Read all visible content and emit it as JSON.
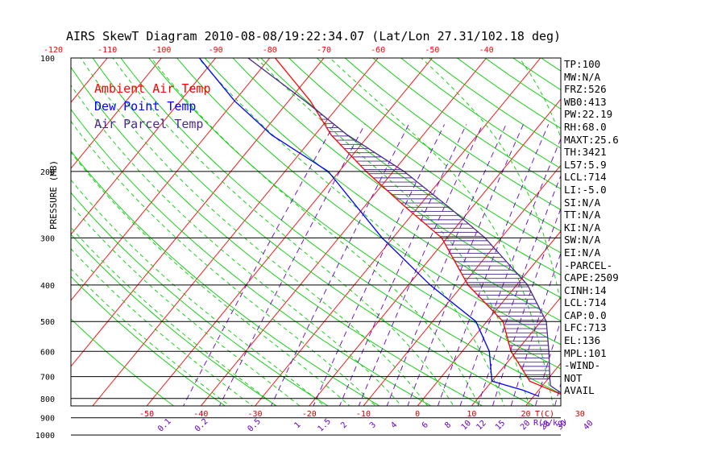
{
  "chart_data": {
    "type": "line",
    "title": "AIRS SkewT Diagram 2010-08-08/19:22:34.07 (Lat/Lon 27.31/102.18 deg)",
    "ylabel": "PRESSURE (MB)",
    "pressure_ticks": [
      100,
      200,
      300,
      400,
      500,
      600,
      700,
      800,
      900,
      1000
    ],
    "pressure_range": [
      100,
      1050
    ],
    "temperature_range_bottom": [
      -52,
      38
    ],
    "top_temp_ticks": [
      -120,
      -110,
      -100,
      -90,
      -80,
      -70,
      -60,
      -50,
      -40
    ],
    "bottom_temp_ticks": [
      -50,
      -40,
      -30,
      -20,
      -10,
      0,
      10,
      20,
      30
    ],
    "bottom_temp_unit": "T(C)",
    "mixing_ratio_ticks": [
      "0.1",
      "0.2",
      "0.5",
      "1",
      "1.5",
      "2",
      "3",
      "4",
      "6",
      "8",
      "10",
      "12",
      "15",
      "20",
      "25",
      "30",
      "40"
    ],
    "mixing_ratio_unit": "R(g/kg)",
    "legend": [
      {
        "label": "Ambient Air Temp",
        "color": "#ff0000"
      },
      {
        "label": "Dew Point Temp",
        "color": "#0000ff"
      },
      {
        "label": "Air Parcel Temp",
        "color": "#4b2a8c"
      }
    ],
    "series": [
      {
        "name": "Ambient Air Temp",
        "color": "#ff0000",
        "points": [
          [
            790,
            26
          ],
          [
            720,
            17
          ],
          [
            600,
            9
          ],
          [
            500,
            3
          ],
          [
            400,
            -9
          ],
          [
            300,
            -21
          ],
          [
            250,
            -32
          ],
          [
            200,
            -45
          ],
          [
            160,
            -57
          ],
          [
            130,
            -66
          ],
          [
            100,
            -79
          ]
        ]
      },
      {
        "name": "Dew Point Temp",
        "color": "#0000ff",
        "points": [
          [
            790,
            21
          ],
          [
            760,
            17
          ],
          [
            720,
            10
          ],
          [
            600,
            5
          ],
          [
            500,
            -2
          ],
          [
            400,
            -16
          ],
          [
            300,
            -32
          ],
          [
            250,
            -41
          ],
          [
            200,
            -52
          ],
          [
            160,
            -68
          ],
          [
            130,
            -80
          ],
          [
            100,
            -93
          ]
        ]
      },
      {
        "name": "Air Parcel Temp",
        "color": "#4b2a8c",
        "points": [
          [
            790,
            26
          ],
          [
            740,
            21.5
          ],
          [
            714,
            20.5
          ],
          [
            600,
            16
          ],
          [
            500,
            11
          ],
          [
            400,
            2
          ],
          [
            300,
            -13
          ],
          [
            250,
            -24
          ],
          [
            200,
            -38
          ],
          [
            160,
            -54
          ],
          [
            130,
            -67
          ],
          [
            100,
            -84
          ]
        ]
      }
    ]
  },
  "stats": [
    "TP:100",
    "MW:N/A",
    "FRZ:526",
    "WB0:413",
    "PW:22.19",
    "RH:68.0",
    "MAXT:25.6",
    "TH:3421",
    "L57:5.9",
    "LCL:714",
    "LI:-5.0",
    "SI:N/A",
    "TT:N/A",
    "KI:N/A",
    "SW:N/A",
    "EI:N/A",
    "-PARCEL-",
    "CAPE:2509",
    "CINH:14",
    "LCL:714",
    "CAP:0.0",
    "LFC:713",
    "EL:136",
    "MPL:101",
    "-WIND-",
    "NOT",
    "AVAIL"
  ],
  "colors": {
    "ambient": "#ff0000",
    "dew": "#0000ff",
    "parcel": "#4b2a8c",
    "isotherm": "#ff0000",
    "dry_adiabat": "#00cc00",
    "moist_adiabat": "#00cc00",
    "mixing_ratio": "#6600cc",
    "top_axis": "#ff0000",
    "bottom_axis": "#cc0000",
    "mixing_labels": "#6600cc"
  }
}
